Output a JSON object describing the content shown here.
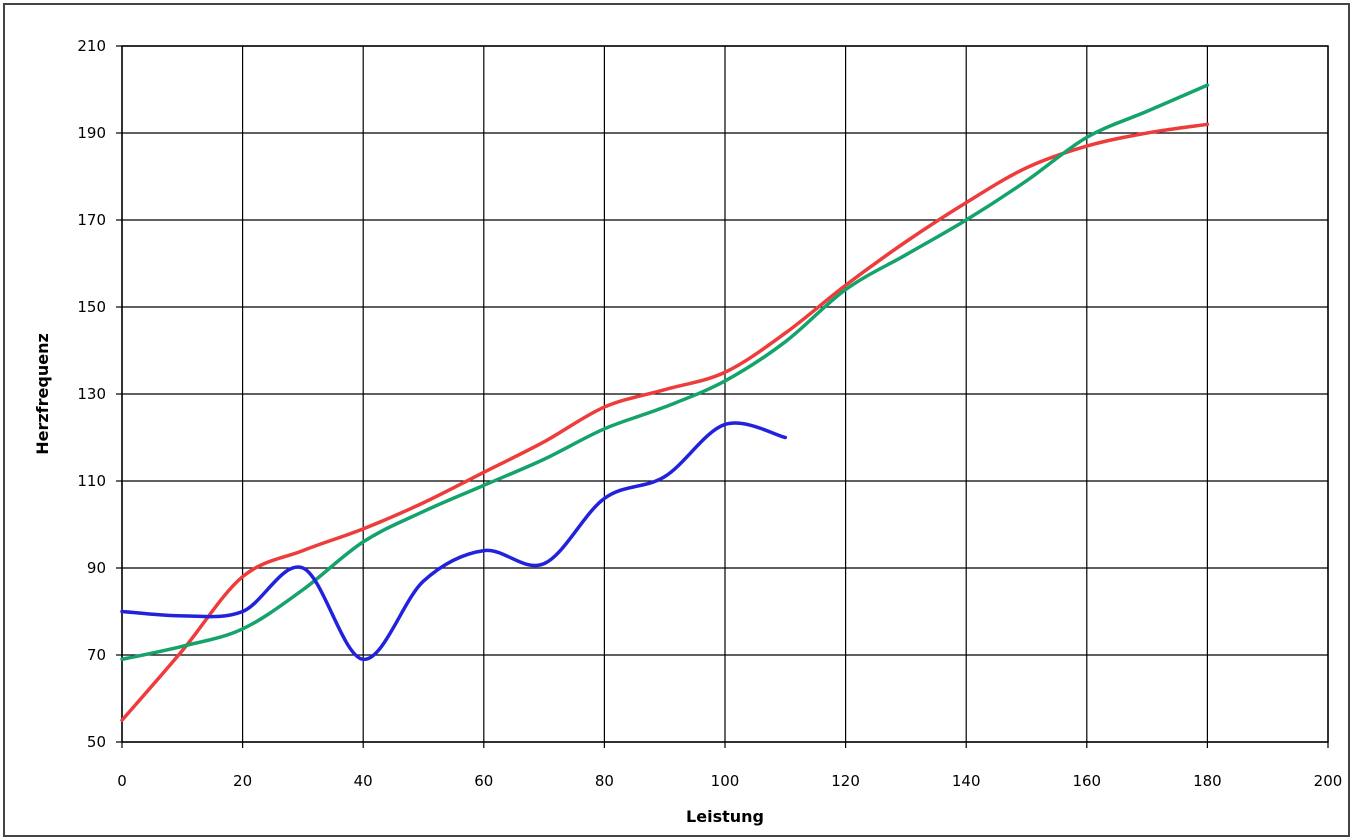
{
  "chart_data": {
    "type": "line",
    "title": "",
    "xlabel": "Leistung",
    "ylabel": "Herzfrequenz",
    "xlim": [
      0,
      200
    ],
    "ylim": [
      50,
      210
    ],
    "xticks": [
      0,
      20,
      40,
      60,
      80,
      100,
      120,
      140,
      160,
      180,
      200
    ],
    "yticks": [
      50,
      70,
      90,
      110,
      130,
      150,
      170,
      190,
      210
    ],
    "grid": true,
    "legend": "none",
    "series": [
      {
        "color": "#ee3b3b",
        "x": [
          0,
          10,
          20,
          30,
          40,
          50,
          60,
          70,
          80,
          90,
          100,
          110,
          120,
          130,
          140,
          150,
          160,
          170,
          180
        ],
        "y": [
          55,
          71,
          88,
          94,
          99,
          105,
          112,
          119,
          127,
          131,
          135,
          144,
          155,
          165,
          174,
          182,
          187,
          190,
          192
        ]
      },
      {
        "color": "#13a36b",
        "x": [
          0,
          10,
          20,
          30,
          40,
          50,
          60,
          70,
          80,
          90,
          100,
          110,
          120,
          130,
          140,
          150,
          160,
          170,
          180
        ],
        "y": [
          69,
          72,
          76,
          85,
          96,
          103,
          109,
          115,
          122,
          127,
          133,
          142,
          154,
          162,
          170,
          179,
          189,
          195,
          201
        ]
      },
      {
        "color": "#2222dd",
        "x": [
          0,
          10,
          20,
          30,
          40,
          50,
          60,
          70,
          80,
          90,
          100,
          110
        ],
        "y": [
          80,
          79,
          80,
          90,
          69,
          87,
          94,
          91,
          106,
          111,
          123,
          120
        ]
      }
    ]
  }
}
